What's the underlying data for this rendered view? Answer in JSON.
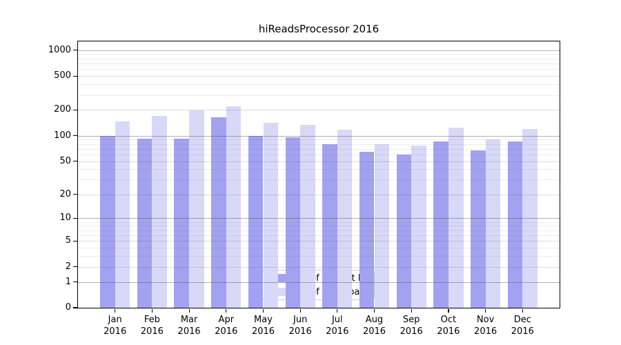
{
  "chart_data": {
    "type": "bar",
    "title": "hiReadsProcessor 2016",
    "categories": [
      "Jan",
      "Feb",
      "Mar",
      "Apr",
      "May",
      "Jun",
      "Jul",
      "Aug",
      "Sep",
      "Oct",
      "Nov",
      "Dec"
    ],
    "x_tick_second_line": "2016",
    "series": [
      {
        "name": "Nb of distinct IPs",
        "color": "#a2a2f0",
        "values": [
          100,
          93,
          93,
          164,
          100,
          95,
          79,
          65,
          60,
          85,
          67,
          85
        ]
      },
      {
        "name": "Nb of downloads",
        "color": "#d8d8f8",
        "values": [
          148,
          172,
          197,
          223,
          141,
          134,
          117,
          79,
          77,
          124,
          90,
          120
        ]
      }
    ],
    "y_axis": {
      "scale": "log1p",
      "tick_labels": [
        "1000",
        "500",
        "200",
        "100",
        "50",
        "20",
        "10",
        "5",
        "2",
        "1",
        "0"
      ],
      "tick_values": [
        1000,
        500,
        200,
        100,
        50,
        20,
        10,
        5,
        2,
        1,
        0
      ],
      "major_grid_values": [
        1,
        10,
        100,
        1000
      ],
      "mid_grid_values": [
        2,
        5,
        20,
        50,
        200,
        500
      ],
      "minor_grid_values": [
        3,
        4,
        6,
        7,
        8,
        9,
        30,
        40,
        60,
        70,
        80,
        90,
        300,
        400,
        600,
        700,
        800,
        900
      ]
    },
    "ylim": [
      0,
      1267
    ],
    "grid": "on",
    "legend_position": "bottom-center",
    "legend": [
      "Nb of distinct IPs",
      "Nb of downloads"
    ]
  },
  "colors": {
    "ips_bar": "#a2a2f0",
    "downloads_bar": "#d8d8f8",
    "spine": "#000000",
    "legend_border": "#cccccc"
  }
}
